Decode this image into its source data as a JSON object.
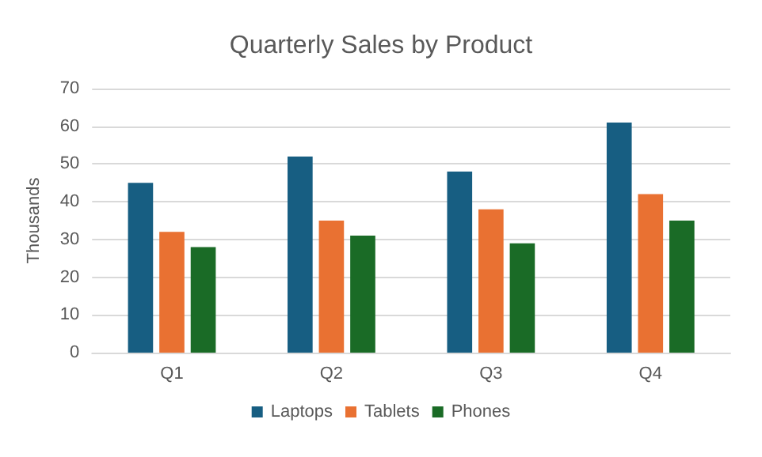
{
  "chart_data": {
    "type": "bar",
    "title": "Quarterly Sales by Product",
    "ylabel": "Thousands",
    "categories": [
      "Q1",
      "Q2",
      "Q3",
      "Q4"
    ],
    "series": [
      {
        "name": "Laptops",
        "color": "#175e82",
        "values": [
          45,
          52,
          48,
          61
        ]
      },
      {
        "name": "Tablets",
        "color": "#e97132",
        "values": [
          32,
          35,
          38,
          42
        ]
      },
      {
        "name": "Phones",
        "color": "#1a6b26",
        "values": [
          28,
          31,
          29,
          35
        ]
      }
    ],
    "ylim": [
      0,
      70
    ],
    "yticks": [
      0,
      10,
      20,
      30,
      40,
      50,
      60,
      70
    ],
    "grid": "y",
    "legend": "bottom"
  }
}
